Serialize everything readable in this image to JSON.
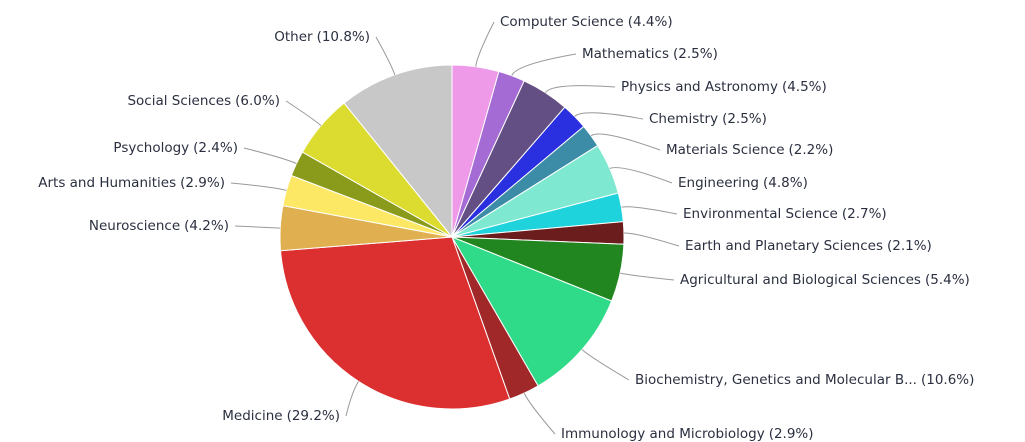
{
  "chart_data": {
    "type": "pie",
    "categories": [
      "Computer Science",
      "Mathematics",
      "Physics and Astronomy",
      "Chemistry",
      "Materials Science",
      "Engineering",
      "Environmental Science",
      "Earth and Planetary Sciences",
      "Agricultural and Biological Sciences",
      "Biochemistry, Genetics and Molecular B...",
      "Immunology and Microbiology",
      "Medicine",
      "Neuroscience",
      "Arts and Humanities",
      "Psychology",
      "Social Sciences",
      "Other"
    ],
    "values": [
      4.4,
      2.5,
      4.5,
      2.5,
      2.2,
      4.8,
      2.7,
      2.1,
      5.4,
      10.6,
      2.9,
      29.2,
      4.2,
      2.9,
      2.4,
      6.0,
      10.8
    ],
    "value_labels": [
      "(4.4%)",
      "(2.5%)",
      "(4.5%)",
      "(2.5%)",
      "(2.2%)",
      "(4.8%)",
      "(2.7%)",
      "(2.1%)",
      "(5.4%)",
      "(10.6%)",
      "(2.9%)",
      "(29.2%)",
      "(4.2%)",
      "(2.9%)",
      "(2.4%)",
      "(6.0%)",
      "(10.8%)"
    ],
    "colors": [
      "#ee9ae8",
      "#a56bd5",
      "#644f85",
      "#2a2fe0",
      "#3c8ca8",
      "#7fe8d0",
      "#1fd3dc",
      "#6b1d1d",
      "#21861f",
      "#2fdb88",
      "#a02828",
      "#dc2f2f",
      "#e0b050",
      "#fde865",
      "#8a9a1a",
      "#dcdc30",
      "#c8c8c8"
    ]
  }
}
